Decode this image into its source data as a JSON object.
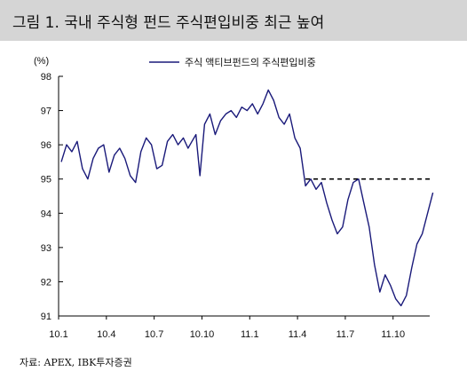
{
  "title": "그림 1. 국내 주식형 펀드 주식편입비중 최근 높여",
  "source": "자료: APEX, IBK투자증권",
  "colors": {
    "series": "#1a1a7a",
    "axis": "#000000",
    "header_bg": "#d5d5d5",
    "reference_line": "#000000"
  },
  "chart_data": {
    "type": "line",
    "title": "그림 1. 국내 주식형 펀드 주식편입비중 최근 높여",
    "ylabel": "(%)",
    "xlabel": "",
    "ylim": [
      91,
      98
    ],
    "yticks": [
      91,
      92,
      93,
      94,
      95,
      96,
      97,
      98
    ],
    "xlim": [
      "2010-01",
      "2011-12"
    ],
    "xticks": [
      "10.1",
      "10.4",
      "10.7",
      "10.10",
      "11.1",
      "11.4",
      "11.7",
      "11.10"
    ],
    "grid": false,
    "legend": "top-center",
    "series": [
      {
        "name": "주식 액티브펀드의 주식편입비중",
        "x": [
          "10.1",
          "10.1",
          "10.1",
          "10.2",
          "10.2",
          "10.2",
          "10.3",
          "10.3",
          "10.3",
          "10.4",
          "10.4",
          "10.4",
          "10.5",
          "10.5",
          "10.5",
          "10.6",
          "10.6",
          "10.6",
          "10.7",
          "10.7",
          "10.7",
          "10.8",
          "10.8",
          "10.8",
          "10.9",
          "10.9",
          "10.9",
          "10.9",
          "10.10",
          "10.10",
          "10.10",
          "10.11",
          "10.11",
          "10.11",
          "10.12",
          "10.12",
          "10.12",
          "11.1",
          "11.1",
          "11.1",
          "11.2",
          "11.2",
          "11.2",
          "11.3",
          "11.3",
          "11.3",
          "11.4",
          "11.4",
          "11.4",
          "11.5",
          "11.5",
          "11.5",
          "11.6",
          "11.6",
          "11.6",
          "11.7",
          "11.7",
          "11.7",
          "11.8",
          "11.8",
          "11.8",
          "11.9",
          "11.9",
          "11.9",
          "11.10",
          "11.10",
          "11.10",
          "11.11",
          "11.11",
          "11.11",
          "11.12"
        ],
        "values": [
          95.5,
          96.0,
          95.8,
          96.1,
          95.3,
          95.0,
          95.6,
          95.9,
          96.0,
          95.2,
          95.7,
          95.9,
          95.6,
          95.1,
          94.9,
          95.8,
          96.2,
          96.0,
          95.3,
          95.4,
          96.1,
          96.3,
          96.0,
          96.2,
          95.9,
          96.1,
          96.3,
          95.1,
          96.6,
          96.9,
          96.3,
          96.7,
          96.9,
          97.0,
          96.8,
          97.1,
          97.0,
          97.2,
          96.9,
          97.2,
          97.6,
          97.3,
          96.8,
          96.6,
          96.9,
          96.2,
          95.9,
          94.8,
          95.0,
          94.7,
          94.9,
          94.3,
          93.8,
          93.4,
          93.6,
          94.4,
          94.9,
          95.0,
          94.3,
          93.6,
          92.5,
          91.7,
          92.2,
          91.9,
          91.5,
          91.3,
          91.6,
          92.4,
          93.1,
          93.4,
          94.6
        ]
      }
    ],
    "reference_line": {
      "y": 95.0,
      "style": "dashed",
      "x_start": "11.5",
      "x_end": "11.12"
    }
  }
}
